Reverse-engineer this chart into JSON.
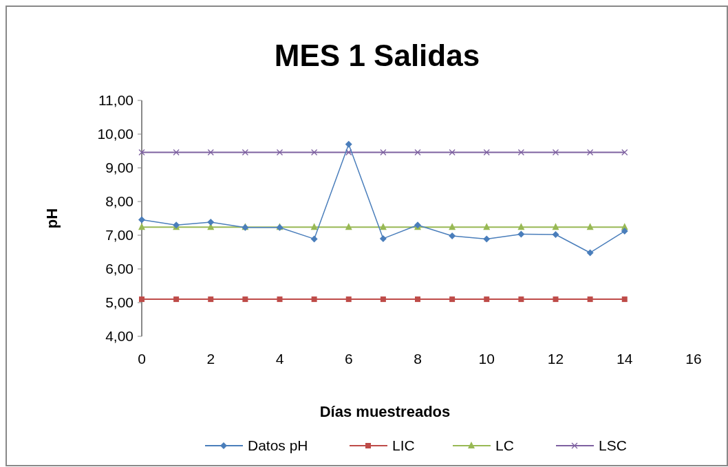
{
  "chart_data": {
    "type": "line",
    "title": "MES 1 Salidas",
    "xlabel": "Días muestreados",
    "ylabel": "pH",
    "x": [
      0,
      1,
      2,
      3,
      4,
      5,
      6,
      7,
      8,
      9,
      10,
      11,
      12,
      13,
      14
    ],
    "xlim": [
      0,
      16
    ],
    "xticks": [
      0,
      2,
      4,
      6,
      8,
      10,
      12,
      14,
      16
    ],
    "ylim": [
      4,
      11
    ],
    "yticks": [
      {
        "value": 4,
        "label": "4,00"
      },
      {
        "value": 5,
        "label": "5,00"
      },
      {
        "value": 6,
        "label": "6,00"
      },
      {
        "value": 7,
        "label": "7,00"
      },
      {
        "value": 8,
        "label": "8,00"
      },
      {
        "value": 9,
        "label": "9,00"
      },
      {
        "value": 10,
        "label": "10,00"
      },
      {
        "value": 11,
        "label": "11,00"
      }
    ],
    "grid": false,
    "legend": "bottom",
    "line_style": "solid",
    "series": [
      {
        "name": "Datos pH",
        "color": "#4a7ebb",
        "marker": "diamond",
        "values": [
          7.46,
          7.3,
          7.39,
          7.23,
          7.23,
          6.89,
          9.7,
          6.9,
          7.3,
          6.98,
          6.89,
          7.03,
          7.02,
          6.48,
          7.12
        ]
      },
      {
        "name": "LIC",
        "color": "#be4b48",
        "marker": "square",
        "values": [
          5.1,
          5.1,
          5.1,
          5.1,
          5.1,
          5.1,
          5.1,
          5.1,
          5.1,
          5.1,
          5.1,
          5.1,
          5.1,
          5.1,
          5.1
        ]
      },
      {
        "name": "LC",
        "color": "#98b954",
        "marker": "triangle",
        "values": [
          7.24,
          7.24,
          7.24,
          7.24,
          7.24,
          7.24,
          7.24,
          7.24,
          7.24,
          7.24,
          7.24,
          7.24,
          7.24,
          7.24,
          7.24
        ]
      },
      {
        "name": "LSC",
        "color": "#7d60a0",
        "marker": "cross",
        "values": [
          9.46,
          9.46,
          9.46,
          9.46,
          9.46,
          9.46,
          9.46,
          9.46,
          9.46,
          9.46,
          9.46,
          9.46,
          9.46,
          9.46,
          9.46
        ]
      }
    ]
  }
}
